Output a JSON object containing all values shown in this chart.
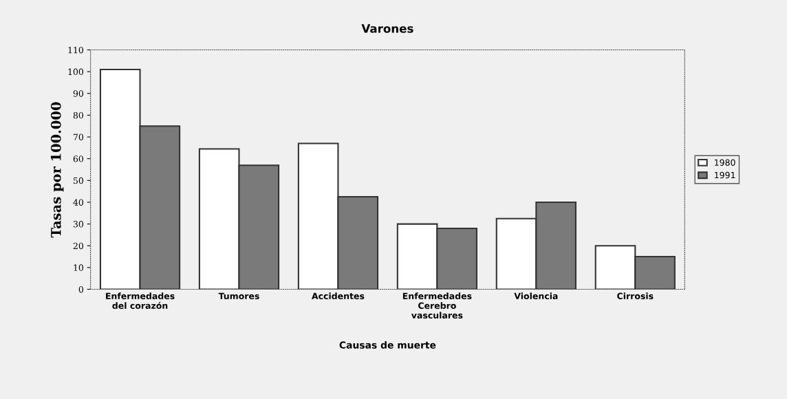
{
  "chart_data": {
    "type": "bar",
    "title": "Varones",
    "xlabel": "Causas de muerte",
    "ylabel": "Tasas por 100.000",
    "categories": [
      "Enfermedades\ndel corazón",
      "Tumores",
      "Accidentes",
      "Enfermedades\nCerebro\nvasculares",
      "Violencia",
      "Cirrosis"
    ],
    "series": [
      {
        "name": "1980",
        "color": "#ffffff",
        "values": [
          101,
          64.5,
          67,
          30,
          32.5,
          20
        ]
      },
      {
        "name": "1991",
        "color": "#7a7a7a",
        "values": [
          75,
          57,
          42.5,
          28,
          40,
          15
        ]
      }
    ],
    "ylim": [
      0,
      110
    ],
    "yticks": [
      0,
      10,
      20,
      30,
      40,
      50,
      60,
      70,
      80,
      90,
      100,
      110
    ],
    "grid": false,
    "legend": "right"
  }
}
